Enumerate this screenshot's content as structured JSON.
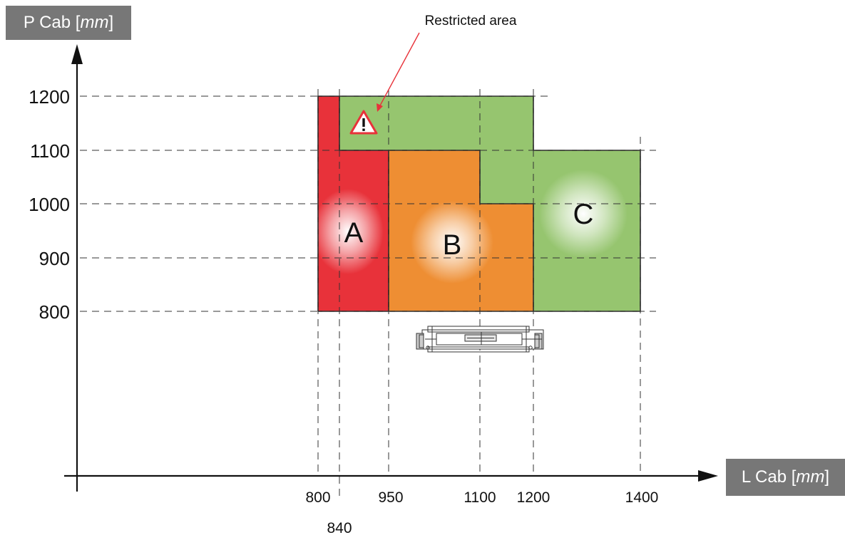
{
  "axes": {
    "y_title": "P Cab",
    "y_unit": "mm",
    "x_title": "L Cab",
    "x_unit": "mm",
    "y_ticks": [
      "800",
      "900",
      "1000",
      "1100",
      "1200"
    ],
    "x_ticks": [
      "800",
      "840",
      "950",
      "1100",
      "1200",
      "1400"
    ]
  },
  "zones": {
    "a": "A",
    "b": "B",
    "c": "C"
  },
  "callout": {
    "label": "Restricted area",
    "icon": "warning-triangle-icon"
  },
  "colors": {
    "zone_a": "#e8323a",
    "zone_b": "#ee8e33",
    "zone_c": "#96c56f",
    "axis_box": "#777777",
    "callout_arrow": "#e8323a"
  }
}
